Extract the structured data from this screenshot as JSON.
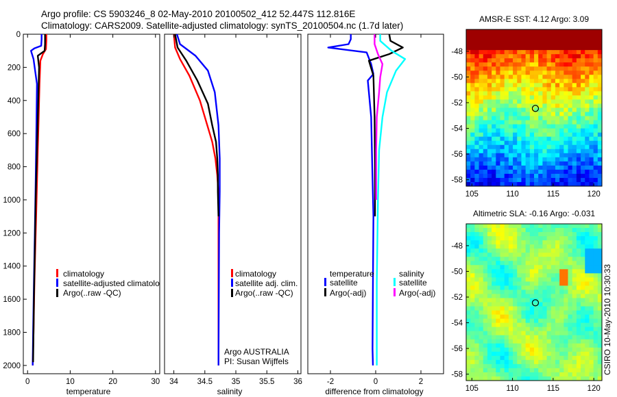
{
  "header": {
    "line1": "Argo profile: CS 5903246_8 02-May-2010 20100502_412 52.447S 112.816E",
    "line2": "Climatology: CARS2009. Satellite-adjusted climatology: synTS_20100504.nc (1.7d later)"
  },
  "credits": {
    "argo": "Argo AUSTRALIA",
    "pi": "PI: Susan Wijffels",
    "stamp": "CSIRO 10-May-2010 10:30:33"
  },
  "colors": {
    "climatology": "#ff0000",
    "satellite": "#0000ff",
    "argo": "#000000",
    "salinity_satellite": "#00ffff",
    "salinity_argo": "#ff00ff"
  },
  "chart_data": [
    {
      "type": "line",
      "xlabel": "temperature",
      "ylabel": "",
      "xlim": [
        -1,
        31
      ],
      "ylim": [
        2050,
        0
      ],
      "xticks": [
        0,
        10,
        20,
        30
      ],
      "yticks": [
        0,
        200,
        400,
        600,
        800,
        1000,
        1200,
        1400,
        1600,
        1800,
        2000
      ],
      "legend": [
        "climatology",
        "satellite-adjusted climatolo",
        "Argo(..raw -QC)"
      ],
      "legend_position": "lower-center",
      "series": [
        {
          "name": "climatology",
          "color": "#ff0000",
          "x": [
            4.4,
            4.4,
            4.3,
            3.6,
            3.0,
            2.8,
            2.6,
            2.4,
            2.2,
            2.0,
            1.8,
            1.6,
            1.4,
            1.2
          ],
          "y": [
            0,
            40,
            90,
            120,
            160,
            300,
            500,
            700,
            900,
            1100,
            1300,
            1500,
            1800,
            2000
          ]
        },
        {
          "name": "satellite-adjusted climatolo",
          "color": "#0000ff",
          "x": [
            3.3,
            3.3,
            3.2,
            1.6,
            0.8,
            1.4,
            2.2,
            2.1,
            2.0,
            1.9,
            1.7,
            1.5,
            1.3,
            1.2
          ],
          "y": [
            0,
            30,
            70,
            85,
            100,
            150,
            300,
            500,
            700,
            900,
            1200,
            1500,
            1800,
            2000
          ]
        },
        {
          "name": "Argo(..raw -QC)",
          "color": "#000000",
          "x": [
            4.1,
            4.1,
            4.0,
            2.4,
            2.7,
            2.5,
            2.3,
            2.1,
            1.9,
            1.7,
            1.5,
            1.3
          ],
          "y": [
            0,
            60,
            100,
            130,
            200,
            400,
            600,
            800,
            1000,
            1300,
            1600,
            1980
          ]
        }
      ]
    },
    {
      "type": "line",
      "xlabel": "salinity",
      "ylabel": "",
      "xlim": [
        33.85,
        36.05
      ],
      "ylim": [
        2050,
        0
      ],
      "xticks": [
        34,
        34.5,
        35,
        35.5,
        36
      ],
      "xtick_labels": [
        "34",
        "34.5",
        "35",
        "35.5",
        "36"
      ],
      "legend": [
        "climatology",
        "satellite adj. clim.",
        "Argo(..raw -QC)"
      ],
      "legend_position": "lower-center",
      "series": [
        {
          "name": "climatology",
          "color": "#ff0000",
          "x": [
            34.0,
            34.02,
            34.1,
            34.25,
            34.42,
            34.54,
            34.62,
            34.67,
            34.7,
            34.72,
            34.72,
            34.72
          ],
          "y": [
            0,
            80,
            150,
            250,
            400,
            550,
            650,
            750,
            850,
            960,
            1200,
            2000
          ]
        },
        {
          "name": "satellite adj. clim.",
          "color": "#0000ff",
          "x": [
            34.05,
            34.1,
            34.35,
            34.55,
            34.66,
            34.72,
            34.74,
            34.74,
            34.73,
            34.72
          ],
          "y": [
            0,
            60,
            130,
            220,
            350,
            550,
            750,
            950,
            1200,
            2000
          ]
        },
        {
          "name": "Argo(..raw -QC)",
          "color": "#000000",
          "x": [
            34.02,
            34.06,
            34.2,
            34.38,
            34.55,
            34.62,
            34.68,
            34.7,
            34.71,
            34.71,
            34.72
          ],
          "y": [
            0,
            80,
            160,
            280,
            420,
            550,
            650,
            750,
            850,
            950,
            1100
          ]
        }
      ]
    },
    {
      "type": "line",
      "xlabel": "difference from climatology",
      "ylabel": "",
      "xlim": [
        -3,
        3
      ],
      "ylim": [
        2050,
        0
      ],
      "xticks": [
        -2,
        0,
        2
      ],
      "legend_groups": [
        {
          "title": "temperature",
          "entries": [
            "satellite",
            "Argo(-adj)"
          ]
        },
        {
          "title": "salinity",
          "entries": [
            "satellite",
            "Argo(-adj)"
          ]
        }
      ],
      "legend_position": "lower-center",
      "series": [
        {
          "name": "satellite",
          "group": "temperature",
          "color": "#0000ff",
          "x": [
            -1.1,
            -1.1,
            -1.2,
            -2.1,
            -0.4,
            -0.2,
            -0.1,
            -0.35,
            -0.2,
            -0.15,
            -0.1,
            -0.12,
            -0.14,
            -0.12
          ],
          "y": [
            0,
            30,
            60,
            80,
            110,
            180,
            240,
            280,
            500,
            800,
            1100,
            1500,
            1900,
            2000
          ]
        },
        {
          "name": "Argo(-adj)",
          "group": "temperature",
          "color": "#000000",
          "x": [
            0.6,
            0.65,
            1.2,
            0.6,
            -0.3,
            -0.1,
            -0.05,
            -0.03,
            -0.03
          ],
          "y": [
            0,
            40,
            80,
            120,
            160,
            250,
            500,
            800,
            1100
          ]
        },
        {
          "name": "satellite",
          "group": "salinity",
          "color": "#00ffff",
          "x": [
            0.2,
            0.2,
            0.7,
            1.3,
            0.9,
            0.5,
            0.3,
            0.15,
            0.1,
            0.05,
            0.05
          ],
          "y": [
            0,
            40,
            100,
            150,
            220,
            350,
            500,
            700,
            1000,
            1500,
            2000
          ]
        },
        {
          "name": "Argo(-adj)",
          "group": "salinity",
          "color": "#ff00ff",
          "x": [
            -0.05,
            -0.05,
            0.1,
            0.3,
            0.2,
            0.15,
            0.05,
            0.02,
            0.02
          ],
          "y": [
            0,
            60,
            120,
            180,
            260,
            350,
            500,
            700,
            1000
          ]
        }
      ]
    },
    {
      "type": "heatmap",
      "title": "AMSR-E SST: 4.12 Argo: 3.09",
      "xlim": [
        104.3,
        121
      ],
      "ylim": [
        -58.5,
        -46.3
      ],
      "xticks": [
        105,
        110,
        115,
        120
      ],
      "yticks": [
        -48,
        -50,
        -52,
        -54,
        -56,
        -58
      ],
      "colormap": "jet",
      "marker": {
        "x": 112.816,
        "y": -52.447
      }
    },
    {
      "type": "heatmap",
      "title": "Altimetric SLA: -0.16 Argo: -0.031",
      "xlim": [
        104.3,
        121
      ],
      "ylim": [
        -58.5,
        -46.3
      ],
      "xticks": [
        105,
        110,
        115,
        120
      ],
      "yticks": [
        -48,
        -50,
        -52,
        -54,
        -56,
        -58
      ],
      "colormap": "jet",
      "marker": {
        "x": 112.816,
        "y": -52.447
      }
    }
  ]
}
